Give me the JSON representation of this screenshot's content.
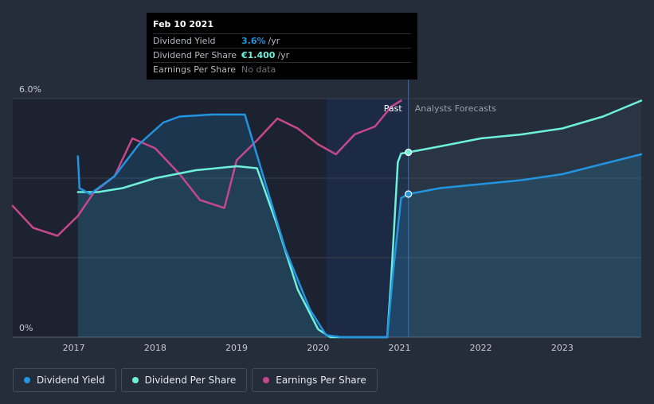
{
  "colors": {
    "dividend_yield": "#2394df",
    "dividend_per_share": "#6ef0db",
    "earnings_per_share": "#c5488c",
    "background": "#252c3a"
  },
  "tooltip": {
    "date": "Feb 10 2021",
    "rows": [
      {
        "label": "Dividend Yield",
        "value": "3.6%",
        "unit": "/yr"
      },
      {
        "label": "Dividend Per Share",
        "value": "€1.400",
        "unit": "/yr"
      },
      {
        "label": "Earnings Per Share",
        "value": "No data"
      }
    ]
  },
  "legend": [
    {
      "label": "Dividend Yield",
      "key": "dividend_yield"
    },
    {
      "label": "Dividend Per Share",
      "key": "dividend_per_share"
    },
    {
      "label": "Earnings Per Share",
      "key": "earnings_per_share"
    }
  ],
  "chart_data": {
    "type": "line",
    "title": "",
    "xlabel": "",
    "ylabel": "",
    "x_ticks": [
      "2017",
      "2018",
      "2019",
      "2020",
      "2021",
      "2022",
      "2023"
    ],
    "xlim": [
      2016.25,
      2023.97
    ],
    "ylim": [
      0,
      6.0
    ],
    "y_ticks": [
      "0%",
      "6.0%"
    ],
    "region_labels": {
      "past": "Past",
      "forecast": "Analysts Forecasts"
    },
    "split_x": 2021.11,
    "highlight_x": [
      2020.1,
      2021.11
    ],
    "series": [
      {
        "name": "Dividend Yield",
        "key": "dividend_yield",
        "unit": "%",
        "points": [
          [
            2017.05,
            4.55
          ],
          [
            2017.07,
            3.75
          ],
          [
            2017.2,
            3.6
          ],
          [
            2017.5,
            4.05
          ],
          [
            2017.8,
            4.85
          ],
          [
            2018.1,
            5.4
          ],
          [
            2018.3,
            5.55
          ],
          [
            2018.7,
            5.6
          ],
          [
            2019.1,
            5.6
          ],
          [
            2019.35,
            3.9
          ],
          [
            2019.6,
            2.2
          ],
          [
            2019.9,
            0.7
          ],
          [
            2020.1,
            0.05
          ],
          [
            2020.3,
            0.0
          ],
          [
            2020.85,
            0.0
          ],
          [
            2020.92,
            1.6
          ],
          [
            2021.02,
            3.5
          ],
          [
            2021.11,
            3.6
          ],
          [
            2021.5,
            3.75
          ],
          [
            2022.0,
            3.85
          ],
          [
            2022.5,
            3.95
          ],
          [
            2023.0,
            4.1
          ],
          [
            2023.97,
            4.6
          ]
        ],
        "forecast_from": 2021.11
      },
      {
        "name": "Dividend Per Share",
        "key": "dividend_per_share",
        "unit": "€",
        "points": [
          [
            2017.05,
            3.65
          ],
          [
            2017.3,
            3.65
          ],
          [
            2017.6,
            3.75
          ],
          [
            2018.0,
            4.0
          ],
          [
            2018.5,
            4.2
          ],
          [
            2019.0,
            4.3
          ],
          [
            2019.25,
            4.25
          ],
          [
            2019.5,
            2.8
          ],
          [
            2019.75,
            1.2
          ],
          [
            2020.0,
            0.2
          ],
          [
            2020.15,
            0.0
          ],
          [
            2020.85,
            0.0
          ],
          [
            2020.9,
            1.5
          ],
          [
            2020.98,
            4.4
          ],
          [
            2021.02,
            4.62
          ],
          [
            2021.11,
            4.65
          ],
          [
            2021.5,
            4.8
          ],
          [
            2022.0,
            5.0
          ],
          [
            2022.5,
            5.1
          ],
          [
            2023.0,
            5.25
          ],
          [
            2023.5,
            5.55
          ],
          [
            2023.97,
            5.95
          ]
        ],
        "forecast_from": 2021.11
      },
      {
        "name": "Earnings Per Share",
        "key": "earnings_per_share",
        "unit": "€",
        "points": [
          [
            2016.25,
            3.3
          ],
          [
            2016.5,
            2.75
          ],
          [
            2016.8,
            2.55
          ],
          [
            2017.05,
            3.05
          ],
          [
            2017.25,
            3.65
          ],
          [
            2017.5,
            4.05
          ],
          [
            2017.72,
            5.0
          ],
          [
            2018.0,
            4.75
          ],
          [
            2018.3,
            4.1
          ],
          [
            2018.55,
            3.45
          ],
          [
            2018.85,
            3.25
          ],
          [
            2019.0,
            4.45
          ],
          [
            2019.25,
            4.95
          ],
          [
            2019.5,
            5.5
          ],
          [
            2019.75,
            5.25
          ],
          [
            2020.0,
            4.85
          ],
          [
            2020.22,
            4.6
          ],
          [
            2020.45,
            5.1
          ],
          [
            2020.7,
            5.3
          ],
          [
            2020.9,
            5.8
          ],
          [
            2021.02,
            5.95
          ]
        ],
        "forecast_from": null
      }
    ],
    "markers": [
      {
        "series": "dividend_yield",
        "x": 2021.11,
        "y": 3.6
      },
      {
        "series": "dividend_per_share",
        "x": 2021.11,
        "y": 4.65
      }
    ]
  }
}
